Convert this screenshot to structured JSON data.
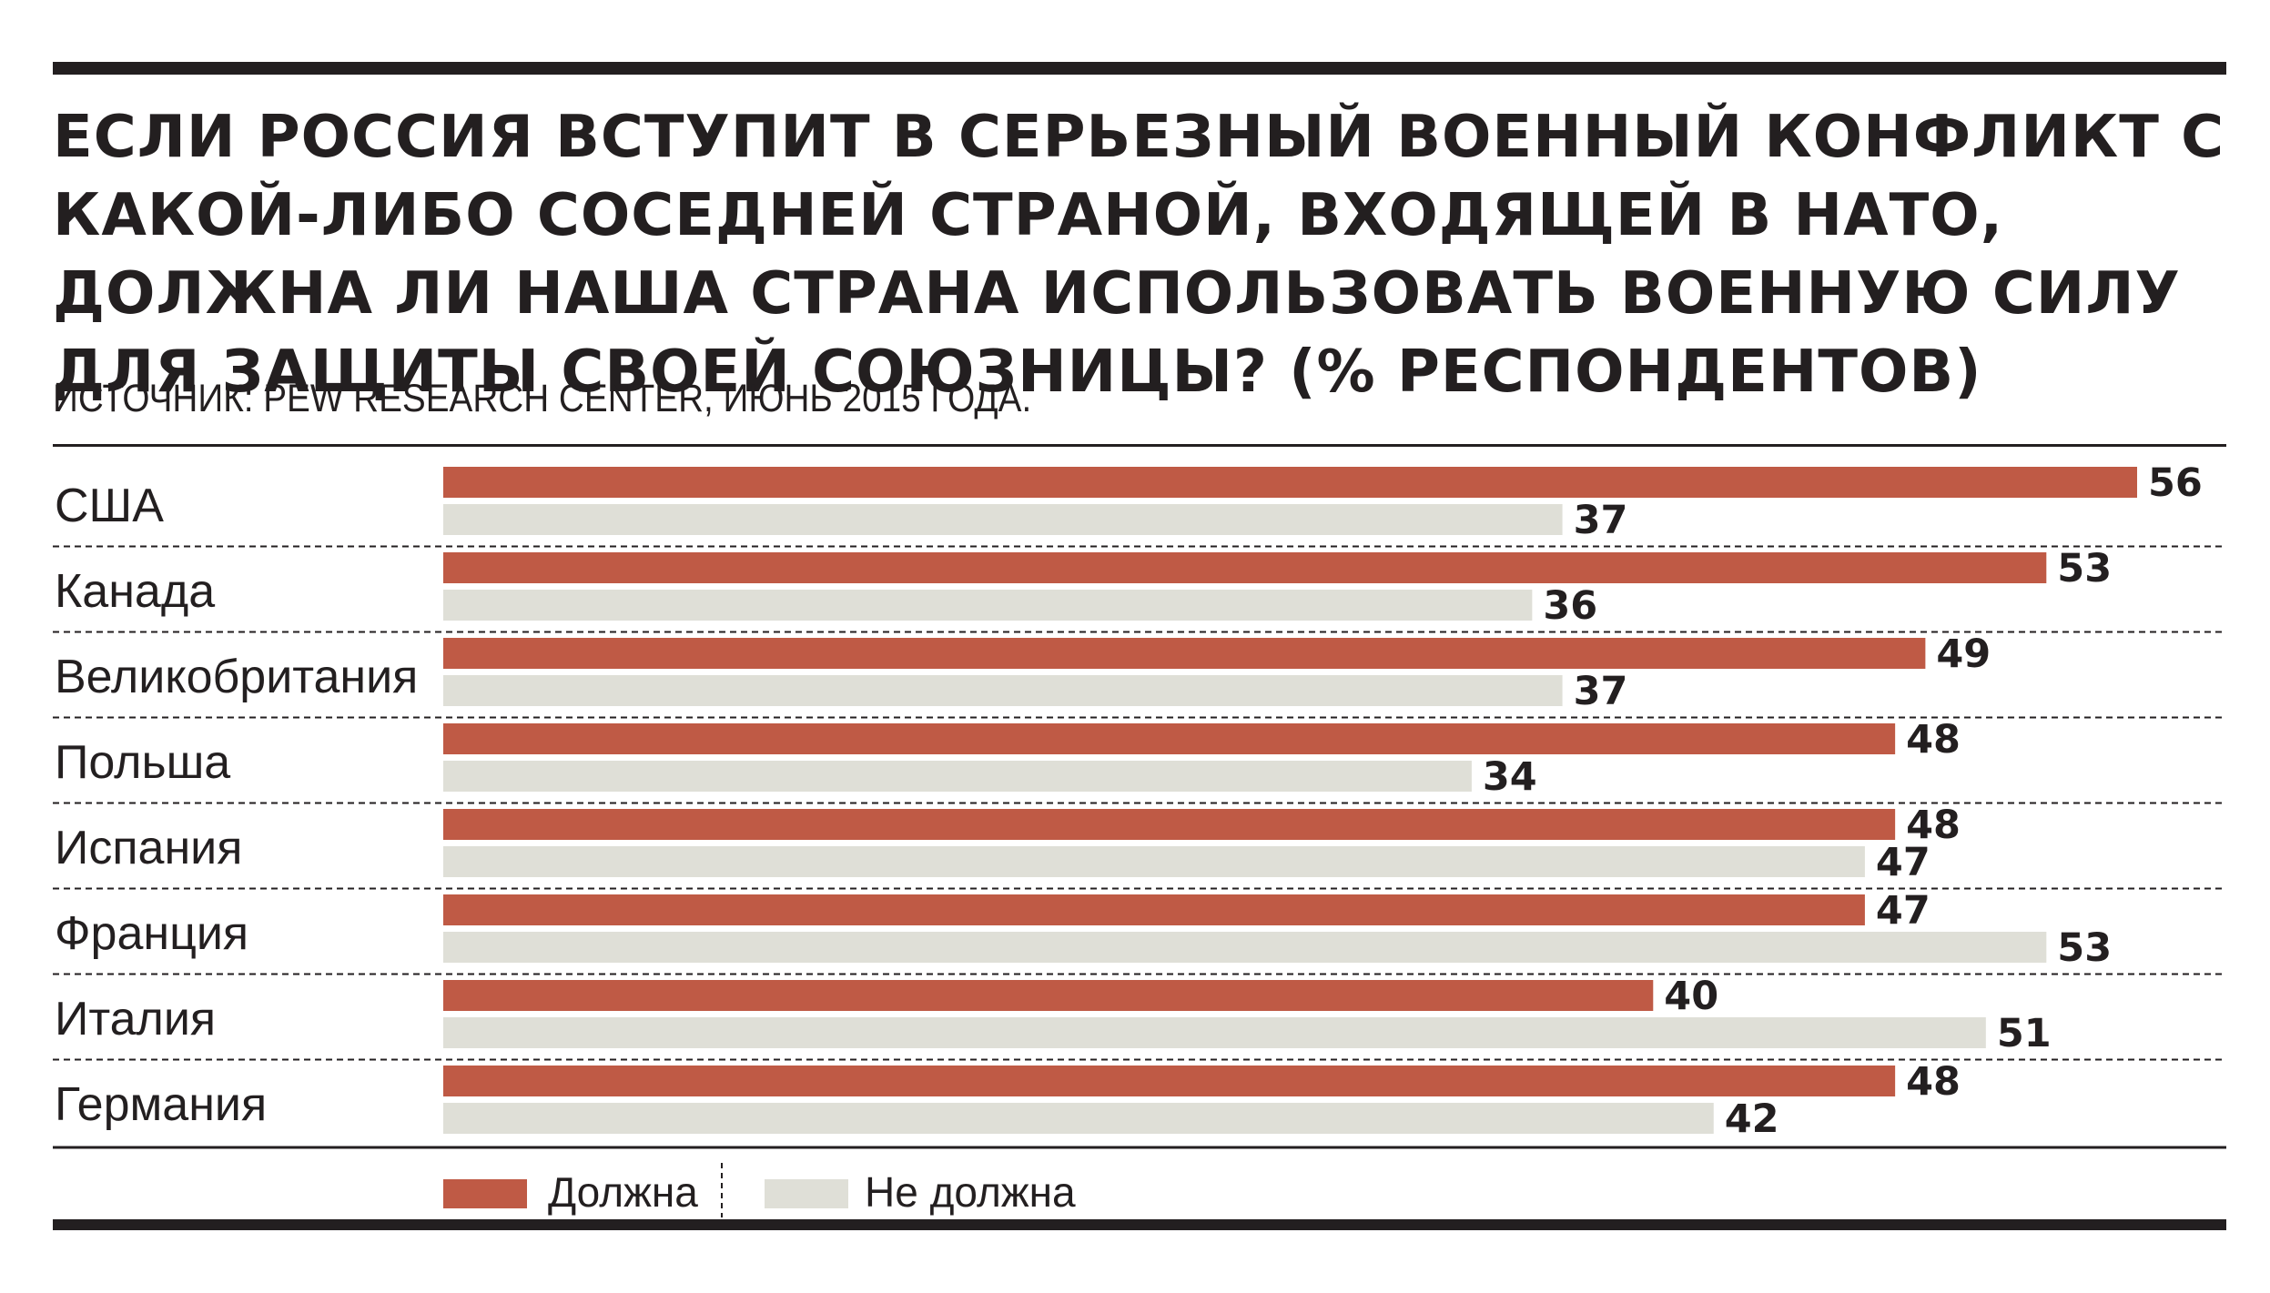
{
  "title": "ЕСЛИ РОССИЯ ВСТУПИТ В СЕРЬЕЗНЫЙ ВОЕННЫЙ КОНФЛИКТ С КАКОЙ-ЛИБО СОСЕДНЕЙ СТРАНОЙ, ВХОДЯЩЕЙ В НАТО, ДОЛЖНА ЛИ НАША СТРАНА ИСПОЛЬЗОВАТЬ ВОЕННУЮ СИЛУ ДЛЯ ЗАЩИТЫ СВОЕЙ СОЮЗНИЦЫ? (% РЕСПОНДЕНТОВ)",
  "source": "ИСТОЧНИК: PEW RESEARCH CENTER, ИЮНЬ 2015 ГОДА.",
  "chart_data": {
    "type": "bar",
    "orientation": "horizontal",
    "title": "ЕСЛИ РОССИЯ ВСТУПИТ В СЕРЬЕЗНЫЙ ВОЕННЫЙ КОНФЛИКТ С КАКОЙ-ЛИБО СОСЕДНЕЙ СТРАНОЙ, ВХОДЯЩЕЙ В НАТО, ДОЛЖНА ЛИ НАША СТРАНА ИСПОЛЬЗОВАТЬ ВОЕННУЮ СИЛУ ДЛЯ ЗАЩИТЫ СВОЕЙ СОЮЗНИЦЫ? (% РЕСПОНДЕНТОВ)",
    "categories": [
      "США",
      "Канада",
      "Великобритания",
      "Польша",
      "Испания",
      "Франция",
      "Италия",
      "Германия"
    ],
    "series": [
      {
        "name": "Должна",
        "color": "#bf5a45",
        "values": [
          56,
          53,
          49,
          48,
          48,
          47,
          40,
          48
        ]
      },
      {
        "name": "Не должна",
        "color": "#dfdfd7",
        "values": [
          37,
          36,
          37,
          34,
          47,
          53,
          51,
          42
        ]
      }
    ],
    "xlim": [
      0,
      56
    ],
    "grid": false,
    "legend_position": "bottom-left"
  }
}
